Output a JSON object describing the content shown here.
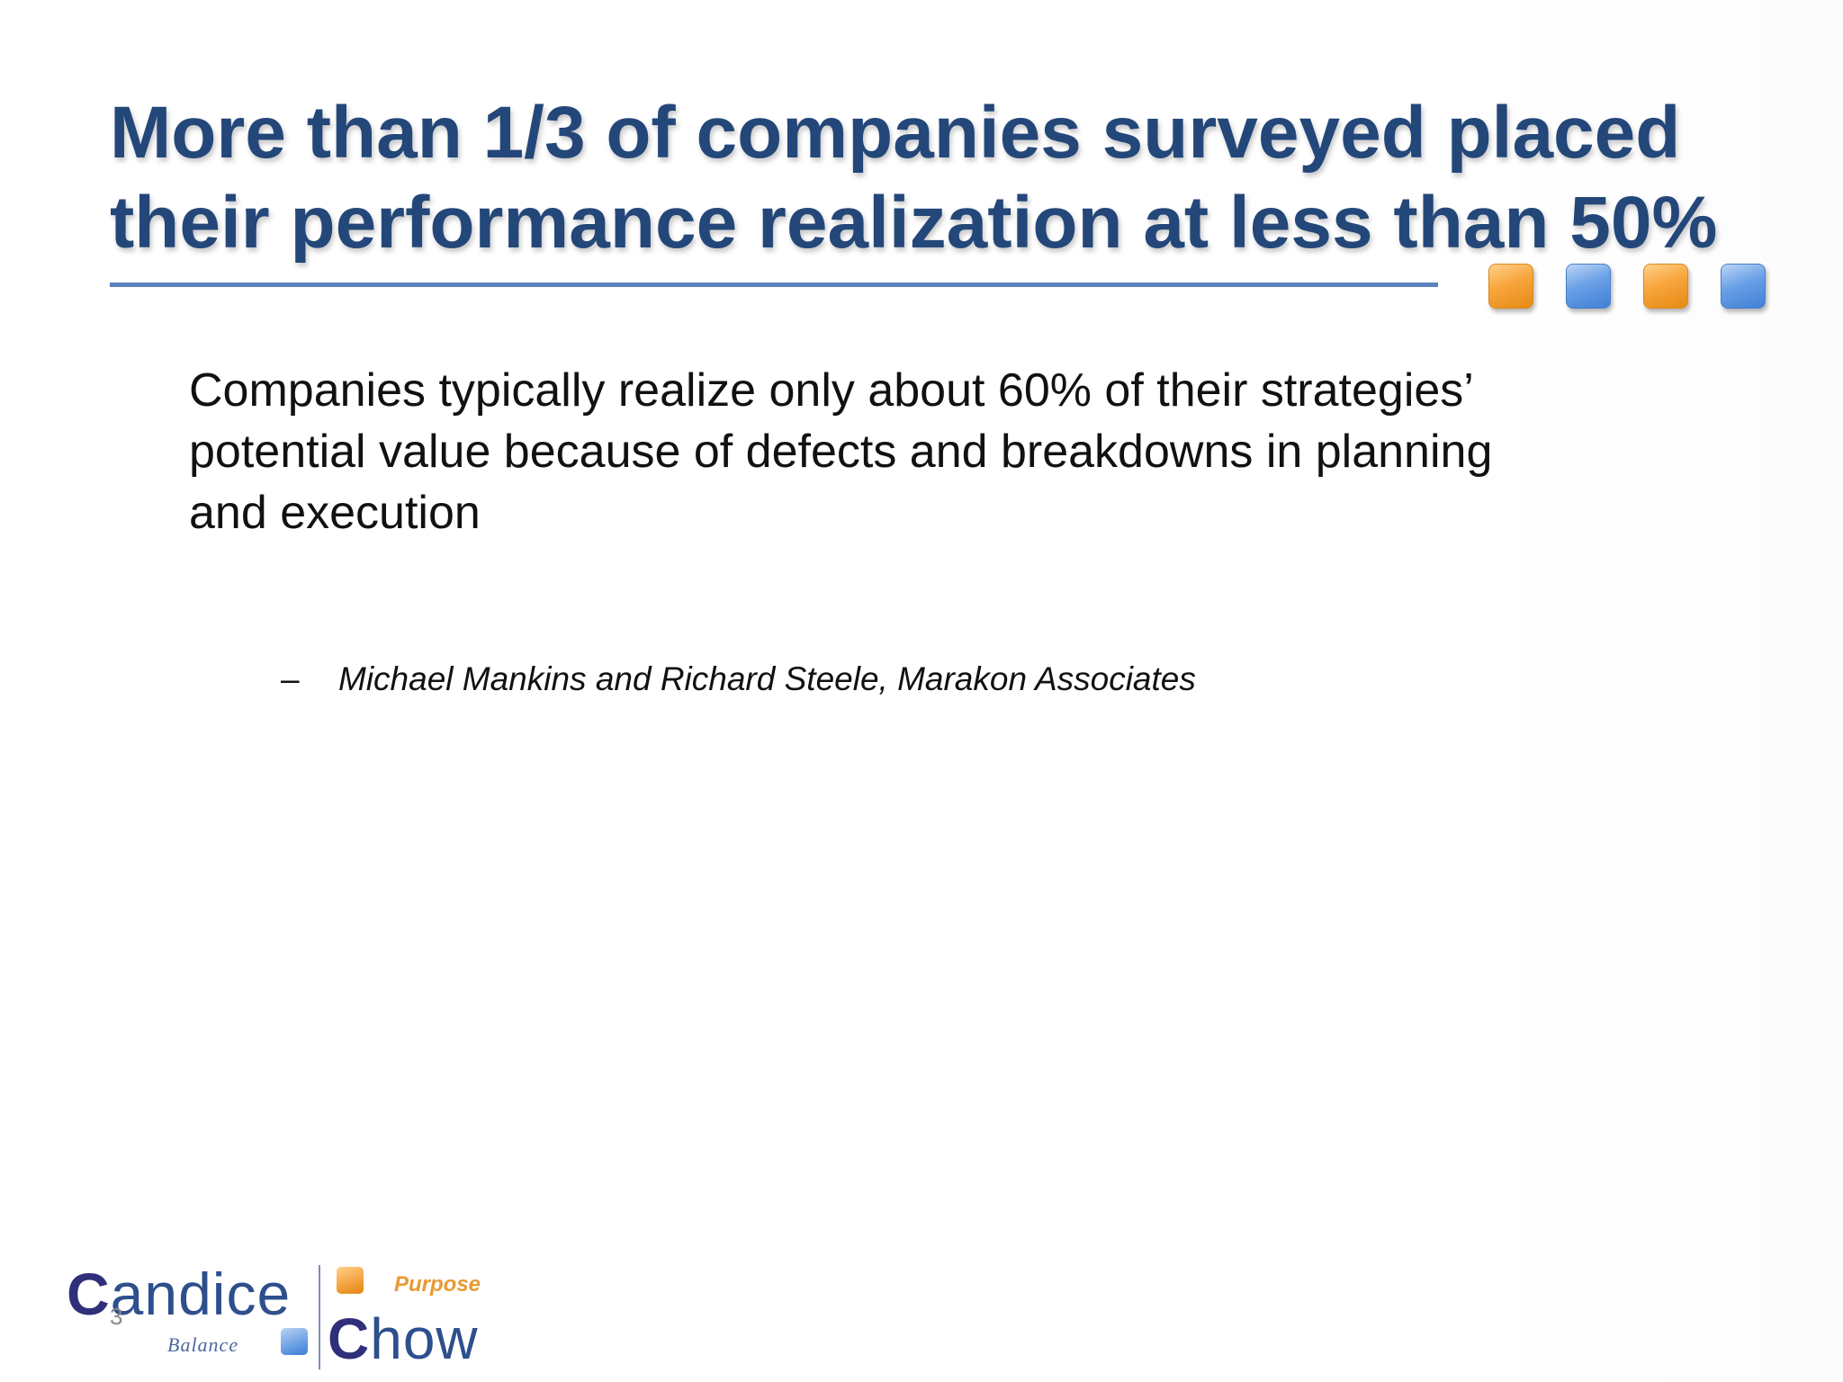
{
  "slide": {
    "title_lines": [
      "More than 1/3 of companies surveyed placed",
      "their performance realization at less than 50%"
    ],
    "body_lines": [
      "Companies typically realize only about 60% of their strategies’",
      "potential value because of defects and breakdowns in planning",
      "and execution"
    ],
    "attribution": {
      "dash": "–",
      "source": "Michael Mankins and Richard Steele, Marakon Associates"
    },
    "page_number": "3"
  },
  "decor": {
    "squares": [
      {
        "icon": "orange-square-icon",
        "color": "#f7a53d"
      },
      {
        "icon": "blue-square-icon",
        "color": "#6aa0e6"
      },
      {
        "icon": "orange-square-icon",
        "color": "#f7a53d"
      },
      {
        "icon": "blue-square-icon",
        "color": "#6aa0e6"
      }
    ],
    "title_color": "#24477a",
    "rule_color": "#5a82bd"
  },
  "logo": {
    "first_cap": "C",
    "first_rest": "andice",
    "last_cap": "C",
    "last_rest": "how",
    "tag_purpose": "Purpose",
    "tag_balance": "Balance"
  }
}
